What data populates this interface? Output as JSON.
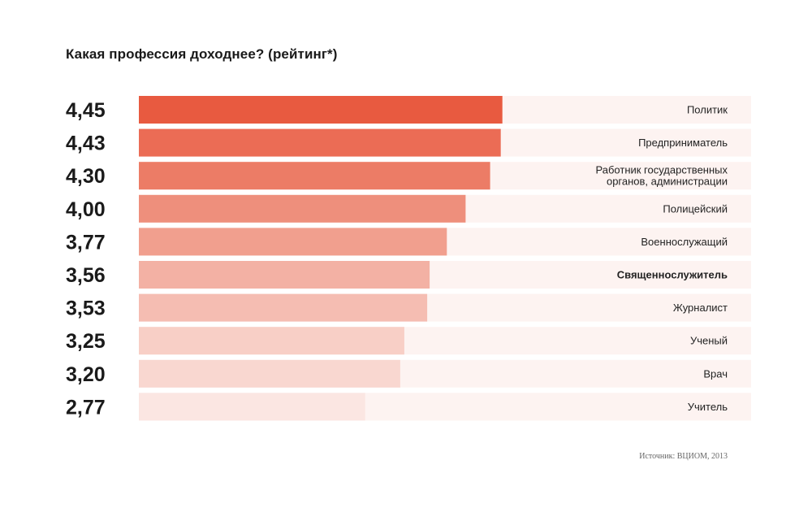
{
  "title": "Какая профессия доходнее? (рейтинг*)",
  "source": "Источник: ВЦИОМ, 2013",
  "colors": {
    "track": "#fdf3f1",
    "value_text": "#1a1a1a",
    "label_text": "#222222",
    "bars": [
      "#e85a40",
      "#eb6c55",
      "#ec7c66",
      "#ee8f7c",
      "#f19f8e",
      "#f3b1a4",
      "#f5bdb2",
      "#f8cfc6",
      "#f9d7d0",
      "#fbe6e2"
    ]
  },
  "chart_data": {
    "type": "bar",
    "orientation": "horizontal",
    "title": "Какая профессия доходнее? (рейтинг*)",
    "xlabel": "",
    "ylabel": "",
    "xlim": [
      0,
      5
    ],
    "grid": false,
    "categories": [
      "Политик",
      "Предприниматель",
      "Работник государственных органов, администрации",
      "Полицейский",
      "Военнослужащий",
      "Священнослужитель",
      "Журналист",
      "Ученый",
      "Врач",
      "Учитель"
    ],
    "label_lines": [
      [
        "Политик"
      ],
      [
        "Предприниматель"
      ],
      [
        "Работник государственных",
        "органов, администрации"
      ],
      [
        "Полицейский"
      ],
      [
        "Военнослужащий"
      ],
      [
        "Священнослужитель"
      ],
      [
        "Журналист"
      ],
      [
        "Ученый"
      ],
      [
        "Врач"
      ],
      [
        "Учитель"
      ]
    ],
    "bold": [
      false,
      false,
      false,
      false,
      false,
      true,
      false,
      false,
      false,
      false
    ],
    "values": [
      4.45,
      4.43,
      4.3,
      4.0,
      3.77,
      3.56,
      3.53,
      3.25,
      3.2,
      2.77
    ],
    "value_labels": [
      "4,45",
      "4,43",
      "4,30",
      "4,00",
      "3,77",
      "3,56",
      "3,53",
      "3,25",
      "3,20",
      "2,77"
    ]
  }
}
